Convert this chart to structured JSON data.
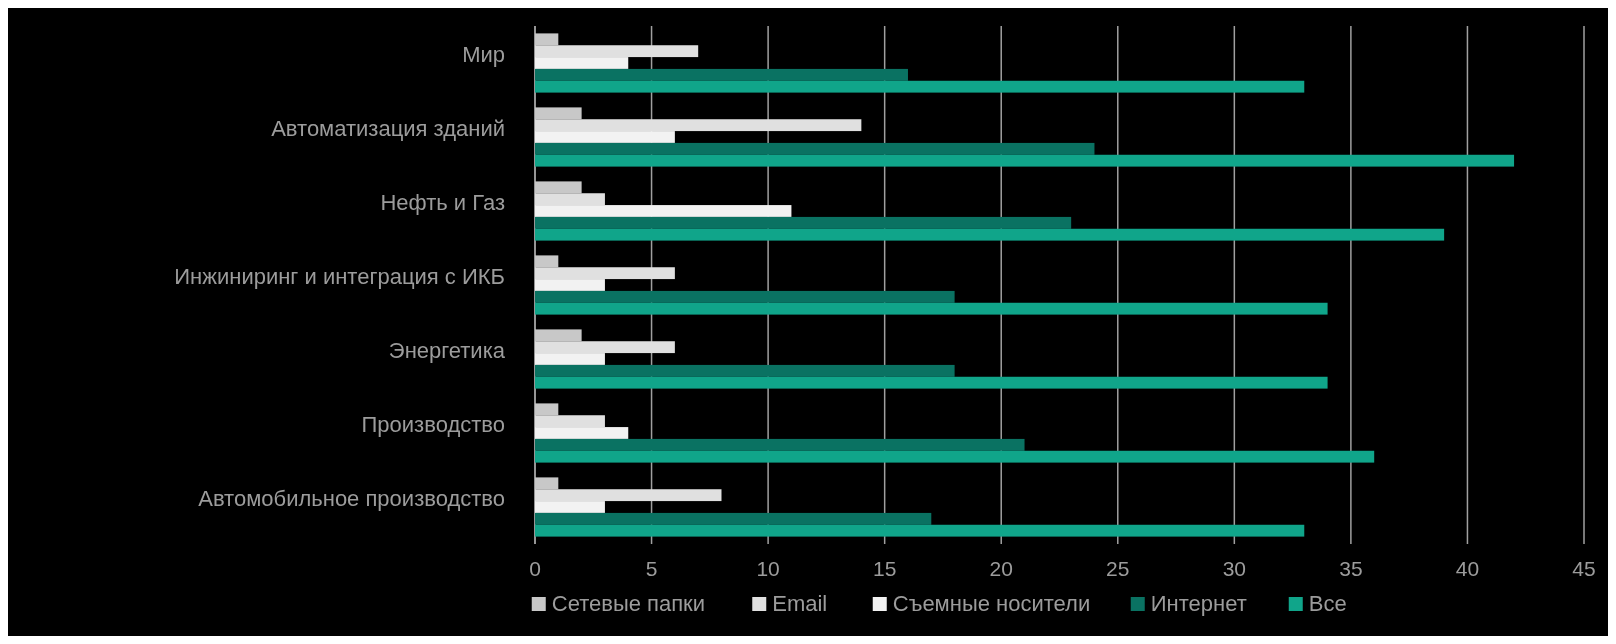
{
  "chart_data": {
    "type": "bar",
    "orientation": "horizontal",
    "categories": [
      "Мир",
      "Автоматизация зданий",
      "Нефть и Газ",
      "Инжиниринг и интеграция с ИКБ",
      "Энергетика",
      "Производство",
      "Автомобильное производство"
    ],
    "series": [
      {
        "name": "Сетевые папки",
        "color": "#c8c8c8",
        "values": [
          1,
          2,
          2,
          1,
          2,
          1,
          1
        ]
      },
      {
        "name": "Email",
        "color": "#e0e0e0",
        "values": [
          7,
          14,
          3,
          6,
          6,
          3,
          8
        ]
      },
      {
        "name": "Съемные носители",
        "color": "#f2f2f2",
        "values": [
          4,
          6,
          11,
          3,
          3,
          4,
          3
        ]
      },
      {
        "name": "Интернет",
        "color": "#0a7262",
        "values": [
          16,
          24,
          23,
          18,
          18,
          21,
          17
        ]
      },
      {
        "name": "Все",
        "color": "#10a58a",
        "values": [
          33,
          42,
          39,
          34,
          34,
          36,
          33
        ]
      }
    ],
    "xlim": [
      0,
      45
    ],
    "xticks": [
      0,
      5,
      10,
      15,
      20,
      25,
      30,
      35,
      40,
      45
    ],
    "grid": "x",
    "legend": "bottom"
  }
}
